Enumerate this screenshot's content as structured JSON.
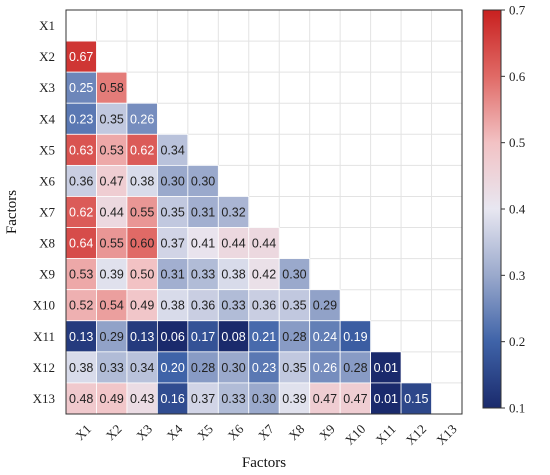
{
  "chart_data": {
    "type": "heatmap",
    "xlabel": "Factors",
    "ylabel": "Factors",
    "rows": [
      "X1",
      "X2",
      "X3",
      "X4",
      "X5",
      "X6",
      "X7",
      "X8",
      "X9",
      "X10",
      "X11",
      "X12",
      "X13"
    ],
    "cols": [
      "X1",
      "X2",
      "X3",
      "X4",
      "X5",
      "X6",
      "X7",
      "X8",
      "X9",
      "X10",
      "X11",
      "X12",
      "X13"
    ],
    "values": [
      [],
      [
        0.67
      ],
      [
        0.25,
        0.58
      ],
      [
        0.23,
        0.35,
        0.26
      ],
      [
        0.63,
        0.53,
        0.62,
        0.34
      ],
      [
        0.36,
        0.47,
        0.38,
        0.3,
        0.3
      ],
      [
        0.62,
        0.44,
        0.55,
        0.35,
        0.31,
        0.32
      ],
      [
        0.64,
        0.55,
        0.6,
        0.37,
        0.41,
        0.44,
        0.44
      ],
      [
        0.53,
        0.39,
        0.5,
        0.31,
        0.33,
        0.38,
        0.42,
        0.3
      ],
      [
        0.52,
        0.54,
        0.49,
        0.38,
        0.36,
        0.33,
        0.36,
        0.35,
        0.29
      ],
      [
        0.13,
        0.29,
        0.13,
        0.06,
        0.17,
        0.08,
        0.21,
        0.28,
        0.24,
        0.19
      ],
      [
        0.38,
        0.33,
        0.34,
        0.2,
        0.28,
        0.3,
        0.23,
        0.35,
        0.26,
        0.28,
        0.01
      ],
      [
        0.48,
        0.49,
        0.43,
        0.16,
        0.37,
        0.33,
        0.3,
        0.39,
        0.47,
        0.47,
        0.01,
        0.15
      ]
    ],
    "labels": [
      [],
      [
        "0.67"
      ],
      [
        "0.25",
        "0.58"
      ],
      [
        "0.23",
        "0.35",
        "0.26"
      ],
      [
        "0.63",
        "0.53",
        "0.62",
        "0.34"
      ],
      [
        "0.36",
        "0.47",
        "0.38",
        "0.30",
        "0.30"
      ],
      [
        "0.62",
        "0.44",
        "0.55",
        "0.35",
        "0.31",
        "0.32"
      ],
      [
        "0.64",
        "0.55",
        "0.60",
        "0.37",
        "0.41",
        "0.44",
        "0.44"
      ],
      [
        "0.53",
        "0.39",
        "0.50",
        "0.31",
        "0.33",
        "0.38",
        "0.42",
        "0.30"
      ],
      [
        "0.52",
        "0.54",
        "0.49",
        "0.38",
        "0.36",
        "0.33",
        "0.36",
        "0.35",
        "0.29"
      ],
      [
        "0.13",
        "0.29",
        "0.13",
        "0.06",
        "0.17",
        "0.08",
        "0.21",
        "0.28",
        "0.24",
        "0.19"
      ],
      [
        "0.38",
        "0.33",
        "0.34",
        "0.20",
        "0.28",
        "0.30",
        "0.23",
        "0.35",
        "0.26",
        "0.28",
        "0.01"
      ],
      [
        "0.48",
        "0.49",
        "0.43",
        "0.16",
        "0.37",
        "0.33",
        "0.30",
        "0.39",
        "0.47",
        "0.47",
        "0.01",
        "0.15"
      ]
    ],
    "colorbar": {
      "vmin": 0.1,
      "vmax": 0.7,
      "ticks": [
        0.1,
        0.2,
        0.3,
        0.4,
        0.5,
        0.6,
        0.7
      ],
      "tick_labels": [
        "0.1",
        "0.2",
        "0.3",
        "0.4",
        "0.5",
        "0.6",
        "0.7"
      ],
      "colors": [
        "#1a2a6c",
        "#3f63a8",
        "#9aa9cc",
        "#e8e7f1",
        "#f2c2c4",
        "#e06a66",
        "#c8201f"
      ]
    },
    "grid": true
  }
}
